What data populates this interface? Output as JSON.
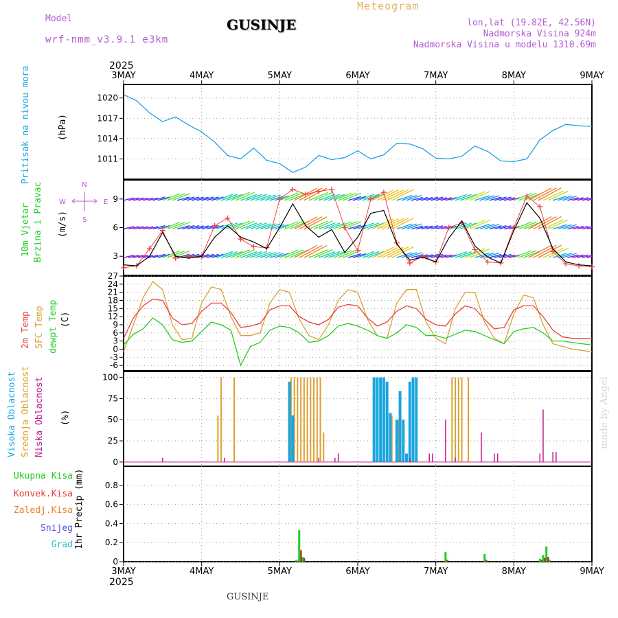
{
  "header": {
    "model_label": "Model",
    "model_name": "wrf-nmm_v3.9.1 e3km",
    "station": "GUSINJE",
    "meteogram": "Meteogram",
    "lonlat": "lon,lat (19.82E, 42.56N)",
    "elevation": "Nadmorska Visina 924m",
    "model_elevation": "Nadmorska Visina u modelu 1310.69m",
    "footer_station": "GUSINJE",
    "watermark": "made by Angel"
  },
  "colors": {
    "pressure": "#1aa5e0",
    "temp": "#e8403c",
    "sfc": "#dca030",
    "dew": "#22cc22",
    "high": "#1aa5e0",
    "mid": "#dca030",
    "low": "#c01b8c",
    "violet": "#b45ad2"
  },
  "chart_data": [
    {
      "id": "pressure",
      "type": "line",
      "ylim": [
        1008,
        1022
      ],
      "yticks": [
        1011,
        1014,
        1017,
        1020
      ],
      "ylabel": "(hPa)",
      "title": "Pritisak na nivou mora",
      "x": [
        0,
        4,
        8,
        12,
        16,
        20,
        24,
        28,
        32,
        36,
        40,
        44,
        48,
        52,
        56,
        60,
        64,
        68,
        72,
        76,
        80,
        84,
        88,
        92,
        96,
        100,
        104,
        108,
        112,
        116,
        120,
        124,
        128,
        132,
        136,
        140,
        144
      ],
      "values": [
        1020.5,
        1019.6,
        1017.8,
        1016.5,
        1017.2,
        1016.0,
        1015.0,
        1013.5,
        1011.5,
        1011.0,
        1012.6,
        1010.8,
        1010.3,
        1009.0,
        1009.8,
        1011.5,
        1010.9,
        1011.2,
        1012.2,
        1011.0,
        1011.6,
        1013.3,
        1013.2,
        1012.5,
        1011.1,
        1011.0,
        1011.4,
        1012.9,
        1012.1,
        1010.7,
        1010.6,
        1011.0,
        1013.8,
        1015.2,
        1016.1,
        1015.9,
        1015.8
      ]
    },
    {
      "id": "wind",
      "type": "line",
      "ylim": [
        1,
        11
      ],
      "yticks": [
        3,
        6,
        9
      ],
      "ylabel": "(m/s)",
      "title": [
        "10m Vjetar",
        "Brzina i Pravac"
      ],
      "compass": [
        "N",
        "W",
        "E",
        "S"
      ],
      "x": [
        0,
        4,
        8,
        12,
        16,
        20,
        24,
        28,
        32,
        36,
        40,
        44,
        48,
        52,
        56,
        60,
        64,
        68,
        72,
        76,
        80,
        84,
        88,
        92,
        96,
        100,
        104,
        108,
        112,
        116,
        120,
        124,
        128,
        132,
        136,
        140,
        144
      ],
      "speed": [
        2.1,
        2.0,
        3.0,
        5.5,
        3.0,
        2.8,
        3.0,
        5.0,
        6.2,
        5.0,
        4.5,
        3.8,
        6.0,
        8.5,
        6.2,
        5.0,
        5.8,
        3.4,
        5.0,
        7.5,
        7.8,
        4.3,
        2.6,
        2.9,
        2.4,
        4.9,
        6.7,
        4.1,
        2.9,
        2.3,
        5.7,
        8.6,
        7.0,
        3.8,
        2.4,
        2.1,
        2.0
      ],
      "gust": [
        1.8,
        2.0,
        3.8,
        5.7,
        2.8,
        3.0,
        3.0,
        6.2,
        7.0,
        4.8,
        4.0,
        3.9,
        9.0,
        10.0,
        9.5,
        9.8,
        10.0,
        6.0,
        3.6,
        9.0,
        9.7,
        4.4,
        2.3,
        3.0,
        2.4,
        6.0,
        6.5,
        3.7,
        2.4,
        2.3,
        6.0,
        9.3,
        8.2,
        3.5,
        2.2,
        2.0,
        1.9
      ]
    },
    {
      "id": "temperature",
      "type": "line",
      "ylim": [
        -8,
        27
      ],
      "yticks": [
        -6,
        -3,
        0,
        3,
        6,
        9,
        12,
        15,
        18,
        21,
        24,
        27
      ],
      "ylabel": "(C)",
      "title": [
        "2m Temp",
        "SFC Temp",
        "dewpt Temp"
      ],
      "x": [
        0,
        3,
        6,
        9,
        12,
        15,
        18,
        21,
        24,
        27,
        30,
        33,
        36,
        39,
        42,
        45,
        48,
        51,
        54,
        57,
        60,
        63,
        66,
        69,
        72,
        75,
        78,
        81,
        84,
        87,
        90,
        93,
        96,
        99,
        102,
        105,
        108,
        111,
        114,
        117,
        120,
        123,
        126,
        129,
        132,
        135,
        138,
        141,
        144
      ],
      "t2m": [
        4.0,
        11.5,
        16.0,
        18.5,
        18.0,
        11.5,
        9.0,
        9.5,
        14.0,
        17.0,
        17.0,
        13.5,
        8.0,
        8.5,
        9.5,
        14.5,
        16.0,
        16.0,
        12.0,
        10.0,
        9.0,
        11.0,
        15.5,
        16.5,
        16.0,
        11.5,
        8.5,
        10.0,
        14.0,
        16.0,
        15.0,
        11.0,
        9.0,
        8.5,
        13.0,
        16.0,
        15.0,
        11.0,
        7.5,
        8.0,
        14.5,
        16.0,
        16.0,
        12.0,
        7.0,
        4.5,
        4.0,
        4.0,
        4.0
      ],
      "sfc": [
        -1.0,
        9.0,
        19.0,
        25.0,
        22.0,
        9.0,
        3.5,
        4.0,
        17.0,
        23.0,
        22.0,
        12.0,
        5.0,
        5.0,
        6.0,
        17.0,
        22.0,
        21.0,
        11.0,
        5.0,
        3.5,
        9.0,
        18.0,
        22.0,
        21.0,
        11.0,
        5.0,
        4.0,
        17.0,
        22.0,
        22.0,
        10.0,
        4.0,
        2.0,
        15.0,
        21.0,
        21.0,
        10.0,
        4.0,
        2.0,
        13.0,
        20.0,
        19.0,
        9.0,
        2.0,
        1.0,
        0.0,
        -0.5,
        -1.0
      ],
      "dew": [
        1.5,
        5.5,
        7.5,
        11.5,
        9.0,
        3.5,
        2.5,
        3.0,
        6.5,
        10.0,
        9.0,
        7.0,
        -6.0,
        1.0,
        2.5,
        7.0,
        8.5,
        8.0,
        6.0,
        2.5,
        3.0,
        5.0,
        8.5,
        9.5,
        8.5,
        7.0,
        5.0,
        4.0,
        6.0,
        9.0,
        8.0,
        5.0,
        5.0,
        4.0,
        5.5,
        7.0,
        6.5,
        5.0,
        3.5,
        2.0,
        6.5,
        7.5,
        8.0,
        6.0,
        3.0,
        3.0,
        2.5,
        2.0,
        1.5
      ]
    },
    {
      "id": "cloud",
      "type": "bar",
      "ylim": [
        -5,
        107
      ],
      "yticks": [
        0,
        25,
        50,
        75,
        100
      ],
      "ylabel": "(%)",
      "title": [
        "Visoka Oblacnost",
        "Srednja Oblacnost",
        "Niska Oblacnost"
      ],
      "high": [
        [
          51.0,
          95
        ],
        [
          52.0,
          55
        ],
        [
          77.0,
          100
        ],
        [
          78.0,
          100
        ],
        [
          79.0,
          100
        ],
        [
          80.0,
          100
        ],
        [
          81.0,
          95
        ],
        [
          82.0,
          58
        ],
        [
          84.0,
          50
        ],
        [
          85.0,
          84
        ],
        [
          86.0,
          50
        ],
        [
          87.0,
          10
        ],
        [
          88.0,
          95
        ],
        [
          89.0,
          100
        ],
        [
          90.0,
          100
        ]
      ],
      "mid": [
        [
          29.0,
          55
        ],
        [
          30.0,
          100
        ],
        [
          34.0,
          100
        ],
        [
          51.5,
          100
        ],
        [
          52.5,
          100
        ],
        [
          53.5,
          100
        ],
        [
          54.5,
          100
        ],
        [
          55.5,
          100
        ],
        [
          56.5,
          100
        ],
        [
          57.5,
          100
        ],
        [
          58.5,
          100
        ],
        [
          59.5,
          100
        ],
        [
          60.5,
          100
        ],
        [
          61.5,
          35
        ],
        [
          82.5,
          55
        ],
        [
          84.5,
          50
        ],
        [
          101.0,
          100
        ],
        [
          102.0,
          100
        ],
        [
          103.0,
          100
        ],
        [
          104.0,
          100
        ],
        [
          106.0,
          100
        ]
      ],
      "low": [
        [
          12.0,
          5
        ],
        [
          31.0,
          5
        ],
        [
          60.0,
          5
        ],
        [
          65.0,
          5
        ],
        [
          66.0,
          10
        ],
        [
          88.0,
          5
        ],
        [
          94.0,
          10
        ],
        [
          95.0,
          10
        ],
        [
          99.0,
          50
        ],
        [
          102.0,
          5
        ],
        [
          110.0,
          35
        ],
        [
          114.0,
          10
        ],
        [
          115.0,
          10
        ],
        [
          128.0,
          10
        ],
        [
          129.0,
          62
        ],
        [
          132.0,
          12
        ],
        [
          133.0,
          12
        ]
      ]
    },
    {
      "id": "precip",
      "type": "bar",
      "ylim": [
        0,
        1.0
      ],
      "yticks": [
        0,
        0.2,
        0.4,
        0.6,
        0.8
      ],
      "ylabel": "1hr Precip (mm)",
      "legend": [
        "Ukupna Kisa",
        "Konvek.Kisa",
        "Zaledj.Kisa",
        "Snijeg",
        "Grad"
      ],
      "total": [
        [
          53.0,
          0.02
        ],
        [
          54.0,
          0.33
        ],
        [
          55.0,
          0.05
        ],
        [
          99.0,
          0.1
        ],
        [
          111.0,
          0.08
        ],
        [
          128.0,
          0.03
        ],
        [
          129.0,
          0.07
        ],
        [
          130.0,
          0.16
        ],
        [
          131.0,
          0.02
        ]
      ],
      "convective": [
        [
          53.5,
          0.01
        ],
        [
          54.5,
          0.12
        ],
        [
          55.5,
          0.04
        ],
        [
          99.5,
          0.02
        ],
        [
          111.5,
          0.02
        ],
        [
          128.5,
          0.02
        ],
        [
          129.5,
          0.04
        ],
        [
          130.5,
          0.05
        ]
      ]
    }
  ],
  "axis": {
    "year": "2025",
    "days": [
      "3MAY",
      "4MAY",
      "5MAY",
      "6MAY",
      "7MAY",
      "8MAY",
      "9MAY"
    ]
  }
}
